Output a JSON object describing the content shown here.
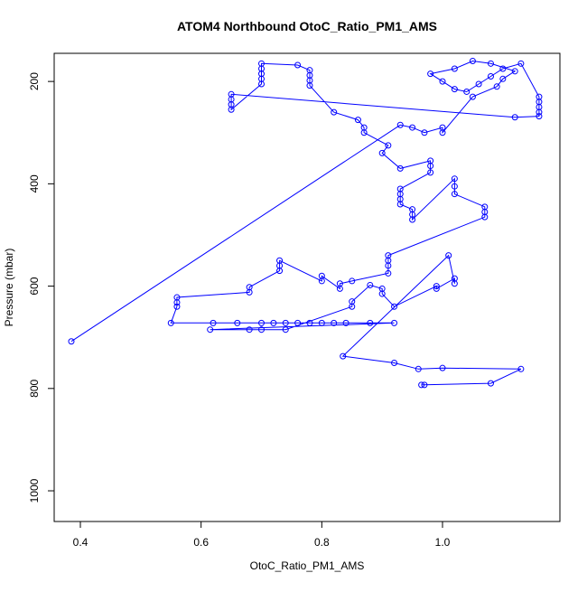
{
  "chart_data": {
    "type": "scatter-line",
    "title": "ATOM4 Northbound OtoC_Ratio_PM1_AMS",
    "x_label": "OtoC_Ratio_PM1_AMS",
    "y_label": "Pressure (mbar)",
    "color": "#0000ff",
    "xlim": [
      0.3566,
      1.1945
    ],
    "ylim": [
      1060,
      145
    ],
    "xticks": [
      0.4,
      0.6,
      0.8,
      {
        "value": 1,
        "label": "1.0"
      }
    ],
    "yticks": [
      200,
      400,
      600,
      800,
      1000
    ],
    "x": [
      0.385,
      0.93,
      0.95,
      0.97,
      1.0,
      1.0,
      1.05,
      1.09,
      1.1,
      1.12,
      1.08,
      1.05,
      1.02,
      0.98,
      1.0,
      1.02,
      1.04,
      1.06,
      1.08,
      1.1,
      1.13,
      1.16,
      1.16,
      1.16,
      1.16,
      1.16,
      1.12,
      0.65,
      0.65,
      0.65,
      0.65,
      0.7,
      0.7,
      0.7,
      0.7,
      0.7,
      0.76,
      0.78,
      0.78,
      0.78,
      0.78,
      0.82,
      0.86,
      0.87,
      0.87,
      0.91,
      0.9,
      0.93,
      0.98,
      0.98,
      0.98,
      0.93,
      0.93,
      0.93,
      0.93,
      0.95,
      0.95,
      0.95,
      1.02,
      1.02,
      1.02,
      1.07,
      1.07,
      1.07,
      0.91,
      0.91,
      0.91,
      0.91,
      0.85,
      0.83,
      0.83,
      0.8,
      0.8,
      0.73,
      0.73,
      0.73,
      0.68,
      0.68,
      0.56,
      0.56,
      0.56,
      0.55,
      0.62,
      0.66,
      0.7,
      0.72,
      0.74,
      0.76,
      0.78,
      0.8,
      0.82,
      0.84,
      0.88,
      0.92,
      0.615,
      0.68,
      0.7,
      0.74,
      0.85,
      0.85,
      0.88,
      0.9,
      0.9,
      0.92,
      0.99,
      0.99,
      1.02,
      1.02,
      1.01,
      0.835,
      0.92,
      0.96,
      1.0,
      1.13,
      1.08,
      0.97,
      0.965
    ],
    "y": [
      708,
      285,
      290,
      300,
      290,
      300,
      230,
      210,
      195,
      180,
      165,
      160,
      175,
      185,
      200,
      215,
      220,
      205,
      190,
      175,
      165,
      230,
      240,
      250,
      260,
      268,
      270,
      225,
      235,
      245,
      255,
      205,
      195,
      185,
      175,
      165,
      168,
      178,
      188,
      198,
      208,
      260,
      275,
      290,
      300,
      325,
      340,
      370,
      355,
      365,
      378,
      410,
      420,
      430,
      440,
      450,
      460,
      470,
      390,
      405,
      420,
      445,
      455,
      465,
      540,
      550,
      560,
      575,
      590,
      595,
      605,
      580,
      590,
      550,
      560,
      570,
      602,
      612,
      622,
      632,
      640,
      672,
      672,
      672,
      672,
      672,
      672,
      672,
      672,
      672,
      672,
      672,
      672,
      672,
      685,
      685,
      685,
      685,
      640,
      630,
      598,
      605,
      615,
      640,
      600,
      605,
      585,
      595,
      540,
      737,
      750,
      762,
      760,
      762,
      790,
      793,
      793
    ]
  }
}
